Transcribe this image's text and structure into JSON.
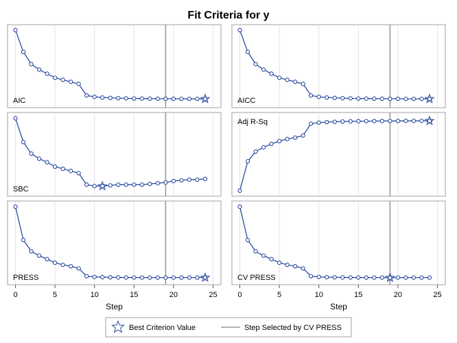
{
  "chart_data": {
    "type": "line",
    "title": "Fit Criteria for y",
    "xlabel": "Step",
    "xlim": [
      -1,
      26
    ],
    "xticks": [
      0,
      5,
      10,
      15,
      20,
      25
    ],
    "selected_step": 19,
    "panels": [
      {
        "label": "AIC",
        "x": [
          0,
          1,
          2,
          3,
          4,
          5,
          6,
          7,
          8,
          9,
          10,
          11,
          12,
          13,
          14,
          15,
          16,
          17,
          18,
          19,
          20,
          21,
          22,
          23,
          24
        ],
        "values": [
          100,
          68,
          50,
          42,
          36,
          30,
          27,
          24,
          21,
          4,
          2,
          1,
          0.5,
          0,
          -0.3,
          -0.5,
          -0.6,
          -0.7,
          -0.8,
          -0.9,
          -0.9,
          -1,
          -1,
          -1,
          -1.1
        ],
        "ylim": [
          -14,
          108
        ],
        "best_step": 24,
        "label_position": "bottom-left"
      },
      {
        "label": "AICC",
        "x": [
          0,
          1,
          2,
          3,
          4,
          5,
          6,
          7,
          8,
          9,
          10,
          11,
          12,
          13,
          14,
          15,
          16,
          17,
          18,
          19,
          20,
          21,
          22,
          23,
          24
        ],
        "values": [
          100,
          68,
          50,
          42,
          36,
          30,
          27,
          24,
          21,
          4,
          2,
          1,
          0.5,
          0,
          -0.3,
          -0.5,
          -0.6,
          -0.7,
          -0.8,
          -0.9,
          -0.9,
          -1,
          -1,
          -1,
          -1.1
        ],
        "ylim": [
          -14,
          108
        ],
        "best_step": 24,
        "label_position": "bottom-left"
      },
      {
        "label": "SBC",
        "x": [
          0,
          1,
          2,
          3,
          4,
          5,
          6,
          7,
          8,
          9,
          10,
          11,
          12,
          13,
          14,
          15,
          16,
          17,
          18,
          19,
          20,
          21,
          22,
          23,
          24
        ],
        "values": [
          100,
          67,
          51,
          44,
          39,
          33,
          30,
          27,
          24,
          8,
          6,
          6,
          7,
          8,
          8,
          8,
          8,
          9,
          10,
          11,
          13,
          14,
          15,
          15,
          16
        ],
        "ylim": [
          -8,
          108
        ],
        "best_step": 11,
        "label_position": "bottom-left"
      },
      {
        "label": "Adj R-Sq",
        "x": [
          0,
          1,
          2,
          3,
          4,
          5,
          6,
          7,
          8,
          9,
          10,
          11,
          12,
          13,
          14,
          15,
          16,
          17,
          18,
          19,
          20,
          21,
          22,
          23,
          24
        ],
        "values": [
          0,
          42,
          56,
          62,
          67,
          71,
          74,
          76,
          79,
          96,
          97.5,
          98.2,
          98.7,
          99.1,
          99.3,
          99.5,
          99.6,
          99.7,
          99.8,
          99.9,
          99.9,
          100,
          100,
          100,
          100
        ],
        "ylim": [
          -8,
          112
        ],
        "best_step": 24,
        "label_position": "top-left"
      },
      {
        "label": "PRESS",
        "x": [
          0,
          1,
          2,
          3,
          4,
          5,
          6,
          7,
          8,
          9,
          10,
          11,
          12,
          13,
          14,
          15,
          16,
          17,
          18,
          19,
          20,
          21,
          22,
          23,
          24
        ],
        "values": [
          100,
          53,
          37,
          31,
          26,
          21,
          18,
          16,
          13,
          2,
          1,
          0.6,
          0.4,
          0.2,
          0.1,
          0.1,
          0,
          0,
          0,
          0,
          0,
          0,
          0,
          0,
          0
        ],
        "ylim": [
          -10,
          108
        ],
        "best_step": 24,
        "label_position": "bottom-left"
      },
      {
        "label": "CV PRESS",
        "x": [
          0,
          1,
          2,
          3,
          4,
          5,
          6,
          7,
          8,
          9,
          10,
          11,
          12,
          13,
          14,
          15,
          16,
          17,
          18,
          19,
          20,
          21,
          22,
          23,
          24
        ],
        "values": [
          100,
          53,
          37,
          31,
          26,
          21,
          18,
          16,
          13,
          2,
          1,
          0.6,
          0.4,
          0.2,
          0.1,
          0.1,
          0,
          0,
          0,
          -0.2,
          0,
          0,
          0,
          0,
          0
        ],
        "ylim": [
          -10,
          108
        ],
        "best_step": 19,
        "label_position": "bottom-left"
      }
    ],
    "legend": {
      "position": "bottom",
      "entries": [
        "Best Criterion Value",
        "Step Selected by CV PRESS"
      ]
    },
    "colors": {
      "series": "#2a4aa0",
      "reference_line": "#9a9a9a",
      "grid": "#e3e3e3"
    }
  }
}
